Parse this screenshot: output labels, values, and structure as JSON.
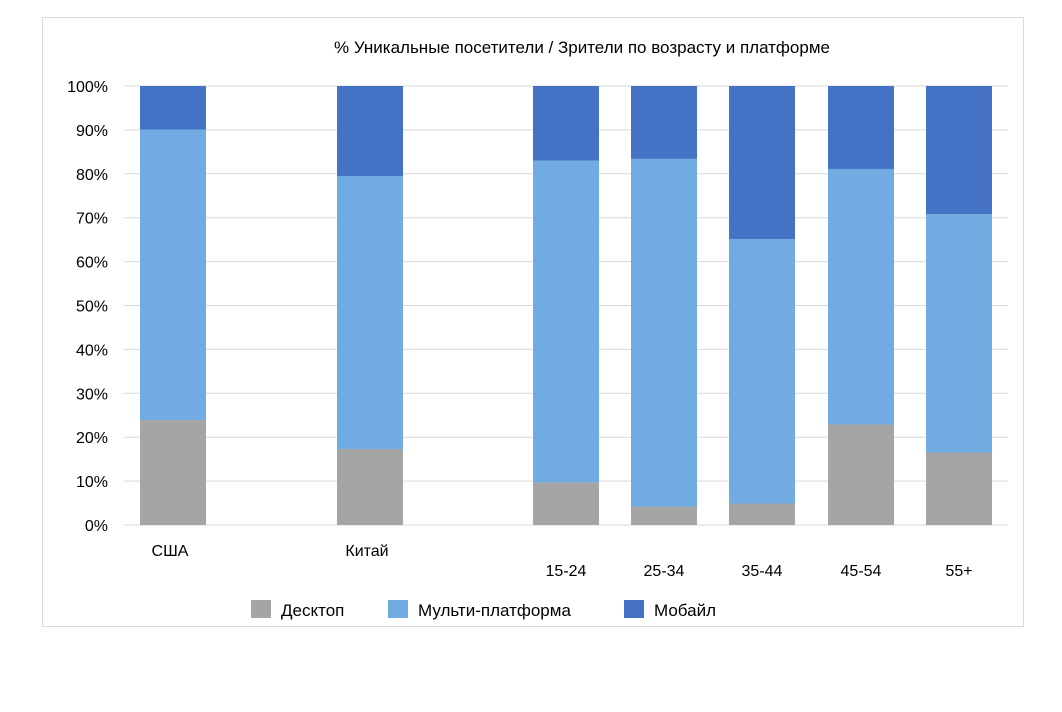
{
  "chart_data": {
    "type": "bar",
    "stacked": true,
    "title": "% Уникальные посетители / Зрители по возрасту и платформе",
    "categories": [
      "США",
      "Китай",
      "15-24",
      "25-34",
      "35-44",
      "45-54",
      "55+"
    ],
    "series": [
      {
        "name": "Десктоп",
        "color": "#a5a5a5",
        "values": [
          23.9,
          17.3,
          9.7,
          4.2,
          4.9,
          22.9,
          16.5
        ]
      },
      {
        "name": "Мульти-платформа",
        "color": "#70ace2",
        "values": [
          66.2,
          62.2,
          73.3,
          79.2,
          60.2,
          58.2,
          54.3
        ]
      },
      {
        "name": "Мобайл",
        "color": "#4472c4",
        "values": [
          9.9,
          20.5,
          17.0,
          16.6,
          34.9,
          18.9,
          29.2
        ]
      }
    ],
    "ylim": [
      0,
      100
    ],
    "yticks": [
      "0%",
      "10%",
      "20%",
      "30%",
      "40%",
      "50%",
      "60%",
      "70%",
      "80%",
      "90%",
      "100%"
    ],
    "grid": true,
    "legend_position": "bottom"
  }
}
